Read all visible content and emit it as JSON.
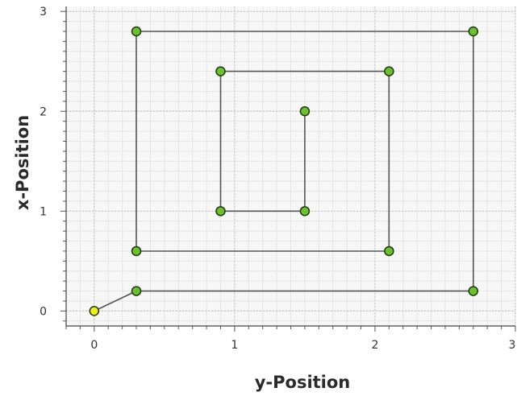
{
  "chart_data": {
    "type": "scatter",
    "connected": true,
    "title": "",
    "xlabel": "y-Position",
    "ylabel": "x-Position",
    "xlim": [
      -0.2,
      3.0
    ],
    "ylim": [
      -0.15,
      3.05
    ],
    "x_ticks": [
      0,
      1,
      2,
      3
    ],
    "y_ticks": [
      0,
      1,
      2,
      3
    ],
    "grid": true,
    "minor_grid": true,
    "series": [
      {
        "points": [
          {
            "x": 0.0,
            "y": 0.0
          },
          {
            "x": 0.3,
            "y": 0.2
          },
          {
            "x": 2.7,
            "y": 0.2
          },
          {
            "x": 2.7,
            "y": 2.8
          },
          {
            "x": 0.3,
            "y": 2.8
          },
          {
            "x": 0.3,
            "y": 0.6
          },
          {
            "x": 2.1,
            "y": 0.6
          },
          {
            "x": 2.1,
            "y": 2.4
          },
          {
            "x": 0.9,
            "y": 2.4
          },
          {
            "x": 0.9,
            "y": 1.0
          },
          {
            "x": 1.5,
            "y": 1.0
          },
          {
            "x": 1.5,
            "y": 2.0
          }
        ]
      }
    ],
    "colors": {
      "start_marker": "#f2ee1a",
      "marker": "#6cc12e",
      "marker_stroke": "#1f3a0e",
      "line": "#555555",
      "major_grid": "#c8c8c8",
      "minor_grid": "#e6e6e6",
      "plot_background": "#f7f7f7"
    }
  }
}
